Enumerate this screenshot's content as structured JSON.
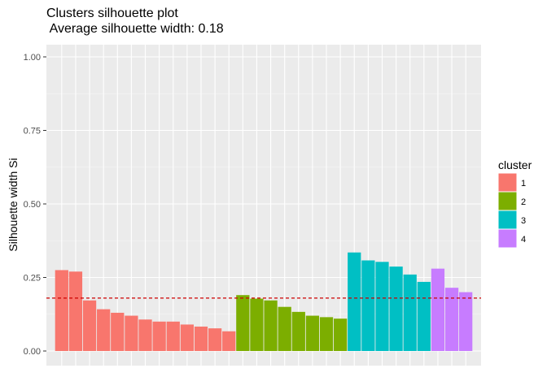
{
  "chart_data": {
    "type": "bar",
    "title": "Clusters silhouette plot",
    "subtitle": " Average silhouette width: 0.18",
    "xlabel": "",
    "ylabel": "Silhouette width Si",
    "ylim": [
      0,
      1
    ],
    "yticks": [
      "0.00",
      "0.25",
      "0.50",
      "0.75",
      "1.00"
    ],
    "average_line": 0.18,
    "legend": {
      "title": "cluster",
      "position": "right"
    },
    "series": [
      {
        "name": "1",
        "color": "#F8766D",
        "values": [
          0.275,
          0.27,
          0.172,
          0.142,
          0.13,
          0.12,
          0.107,
          0.1,
          0.1,
          0.09,
          0.083,
          0.077,
          0.067
        ]
      },
      {
        "name": "2",
        "color": "#7CAE00",
        "values": [
          0.19,
          0.178,
          0.172,
          0.15,
          0.133,
          0.12,
          0.115,
          0.11
        ]
      },
      {
        "name": "3",
        "color": "#00BFC4",
        "values": [
          0.335,
          0.308,
          0.303,
          0.287,
          0.26,
          0.235
        ]
      },
      {
        "name": "4",
        "color": "#C77CFF",
        "values": [
          0.28,
          0.215,
          0.2
        ]
      }
    ]
  }
}
